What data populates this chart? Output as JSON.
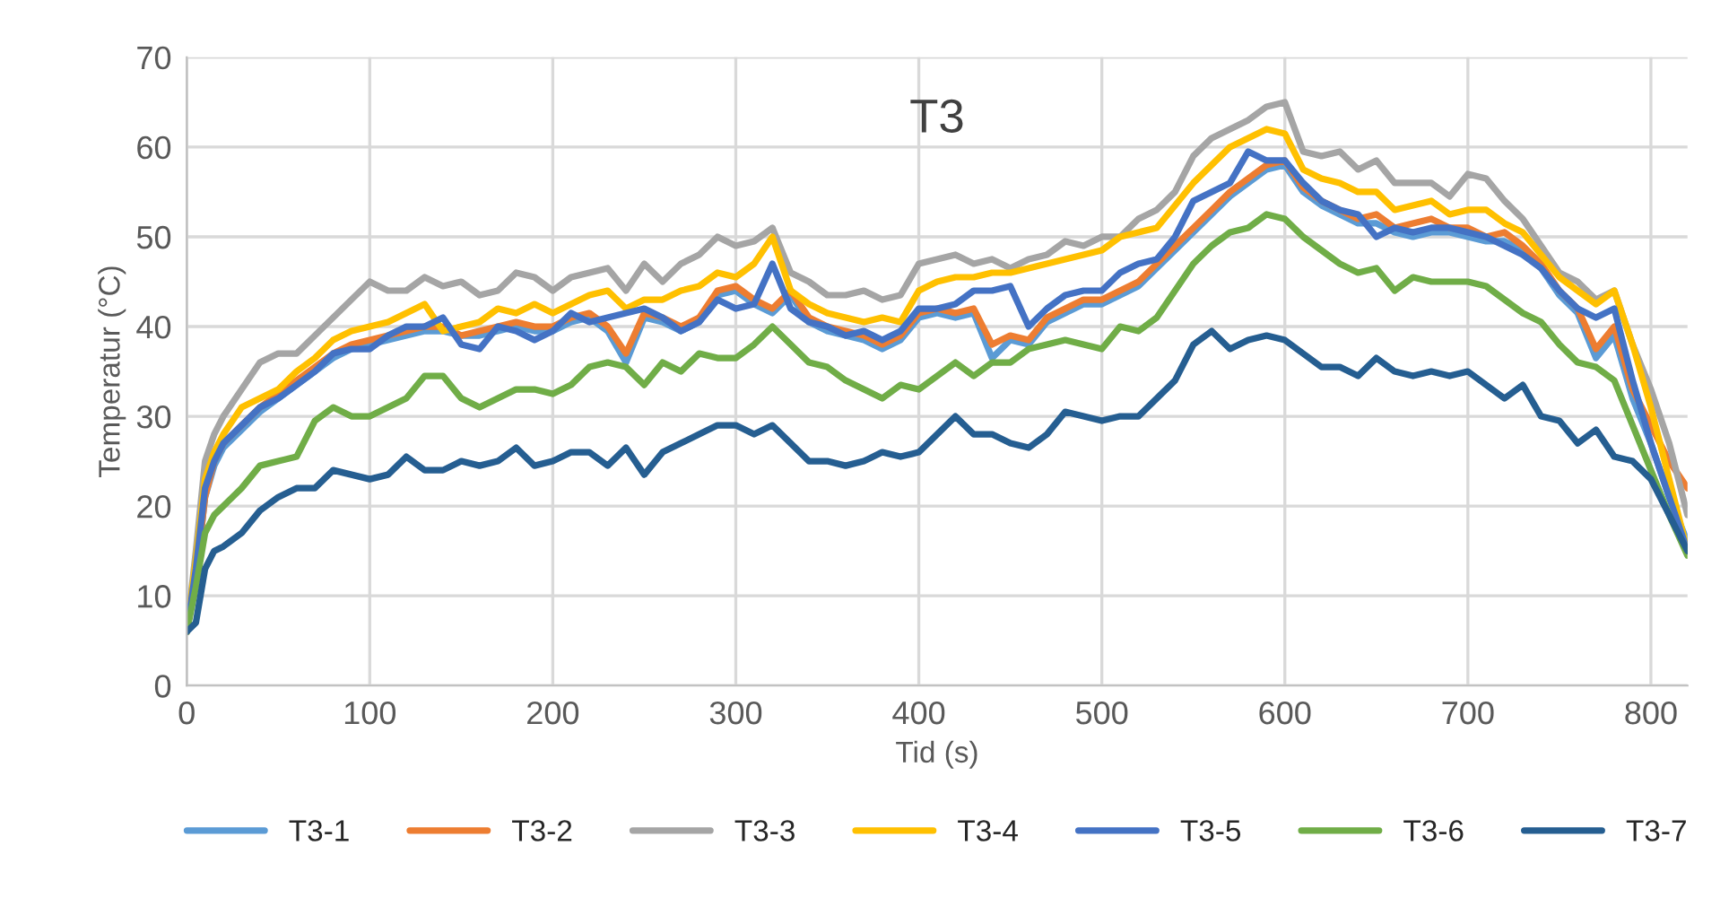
{
  "chart_data": {
    "type": "line",
    "title": "T3",
    "xlabel": "Tid (s)",
    "ylabel": "Temperatur (°C)",
    "xlim": [
      0,
      820
    ],
    "xticks": [
      0,
      100,
      200,
      300,
      400,
      500,
      600,
      700,
      800
    ],
    "ylim": [
      0,
      70
    ],
    "yticks": [
      0,
      10,
      20,
      30,
      40,
      50,
      60,
      70
    ],
    "grid": true,
    "legend": "bottom",
    "marker": "none",
    "line_style": "solid",
    "x": [
      0,
      5,
      10,
      15,
      20,
      30,
      40,
      50,
      60,
      70,
      80,
      90,
      100,
      110,
      120,
      130,
      140,
      150,
      160,
      170,
      180,
      190,
      200,
      210,
      220,
      230,
      240,
      250,
      260,
      270,
      280,
      290,
      300,
      310,
      320,
      330,
      340,
      350,
      360,
      370,
      380,
      390,
      400,
      410,
      420,
      430,
      440,
      450,
      460,
      470,
      480,
      490,
      500,
      510,
      520,
      530,
      540,
      550,
      560,
      570,
      580,
      590,
      600,
      610,
      620,
      630,
      640,
      650,
      660,
      670,
      680,
      690,
      700,
      710,
      720,
      730,
      740,
      750,
      760,
      770,
      780,
      790,
      800,
      810,
      820
    ],
    "series": [
      {
        "name": "T3-1",
        "color": "#5b9bd5",
        "values": [
          6,
          12,
          21,
          24.5,
          26.5,
          28.5,
          30.5,
          32,
          33.5,
          35,
          36.5,
          37.5,
          38,
          38.5,
          39,
          39.5,
          39.5,
          39,
          39,
          39.5,
          40,
          39.5,
          39.5,
          40.5,
          41,
          39.5,
          36,
          41,
          40.5,
          39.5,
          40.5,
          43.5,
          44,
          42.5,
          41.5,
          43.5,
          40.5,
          39.5,
          39,
          38.5,
          37.5,
          38.5,
          41,
          41.5,
          41,
          41.5,
          36.5,
          38.5,
          38,
          40.5,
          41.5,
          42.5,
          42.5,
          43.5,
          44.5,
          46.5,
          48.5,
          50.5,
          52.5,
          54.5,
          56,
          57.5,
          58,
          55,
          53.5,
          52.5,
          51.5,
          51.5,
          50.5,
          50,
          50.5,
          50.5,
          50,
          49.5,
          49.5,
          48.5,
          46.5,
          43.5,
          41.5,
          36.5,
          39,
          32,
          27,
          21,
          16
        ]
      },
      {
        "name": "T3-2",
        "color": "#ed7d31",
        "values": [
          6,
          12,
          21,
          25,
          27,
          29,
          31,
          32.5,
          34,
          35.5,
          37,
          38,
          38.5,
          39,
          39.5,
          40,
          40,
          39,
          39.5,
          40,
          40.5,
          40,
          40,
          41,
          41.5,
          40,
          37,
          41.5,
          41,
          40,
          41,
          44,
          44.5,
          43,
          42,
          44,
          41,
          40,
          39.5,
          39,
          38,
          39,
          41.5,
          42,
          41.5,
          42,
          38,
          39,
          38.5,
          41,
          42,
          43,
          43,
          44,
          45,
          47,
          49,
          51,
          53,
          55,
          56.5,
          58,
          58.5,
          55.5,
          54,
          53,
          52,
          52.5,
          51,
          51.5,
          52,
          51,
          51,
          50,
          50.5,
          49,
          47,
          44,
          42,
          37.5,
          40,
          33,
          29,
          25,
          22
        ]
      },
      {
        "name": "T3-3",
        "color": "#a5a5a5",
        "values": [
          6,
          15,
          25,
          28,
          30,
          33,
          36,
          37,
          37,
          39,
          41,
          43,
          45,
          44,
          44,
          45.5,
          44.5,
          45,
          43.5,
          44,
          46,
          45.5,
          44,
          45.5,
          46,
          46.5,
          44,
          47,
          45,
          47,
          48,
          50,
          49,
          49.5,
          51,
          46,
          45,
          43.5,
          43.5,
          44,
          43,
          43.5,
          47,
          47.5,
          48,
          47,
          47.5,
          46.5,
          47.5,
          48,
          49.5,
          49,
          50,
          50,
          52,
          53,
          55,
          59,
          61,
          62,
          63,
          64.5,
          65,
          59.5,
          59,
          59.5,
          57.5,
          58.5,
          56,
          56,
          56,
          54.5,
          57,
          56.5,
          54,
          52,
          49,
          46,
          45,
          43,
          44,
          38,
          33,
          27,
          19
        ]
      },
      {
        "name": "T3-4",
        "color": "#ffc000",
        "values": [
          6,
          14,
          23,
          26,
          28,
          31,
          32,
          33,
          35,
          36.5,
          38.5,
          39.5,
          40,
          40.5,
          41.5,
          42.5,
          39.5,
          40,
          40.5,
          42,
          41.5,
          42.5,
          41.5,
          42.5,
          43.5,
          44,
          42,
          43,
          43,
          44,
          44.5,
          46,
          45.5,
          47,
          50,
          44,
          42.5,
          41.5,
          41,
          40.5,
          41,
          40.5,
          44,
          45,
          45.5,
          45.5,
          46,
          46,
          46.5,
          47,
          47.5,
          48,
          48.5,
          50,
          50.5,
          51,
          53.5,
          56,
          58,
          60,
          61,
          62,
          61.5,
          57.5,
          56.5,
          56,
          55,
          55,
          53,
          53.5,
          54,
          52.5,
          53,
          53,
          51.5,
          50.5,
          48,
          45.5,
          44,
          42.5,
          44,
          38,
          31,
          23,
          15
        ]
      },
      {
        "name": "T3-5",
        "color": "#4472c4",
        "values": [
          6,
          13,
          22,
          25,
          27,
          29,
          31,
          32,
          33.5,
          35,
          37,
          37.5,
          37.5,
          39,
          40,
          40,
          41,
          38,
          37.5,
          40,
          39.5,
          38.5,
          39.5,
          41.5,
          40.5,
          41,
          41.5,
          42,
          41,
          39.5,
          40.5,
          43,
          42,
          42.5,
          47,
          42,
          40.5,
          40,
          39,
          39.5,
          38.5,
          39.5,
          42,
          42,
          42.5,
          44,
          44,
          44.5,
          40,
          42,
          43.5,
          44,
          44,
          46,
          47,
          47.5,
          50,
          54,
          55,
          56,
          59.5,
          58.5,
          58.5,
          56,
          54,
          53,
          52.5,
          50,
          51,
          50.5,
          51,
          51,
          50.5,
          50,
          49,
          48,
          46.5,
          44,
          42,
          41,
          42,
          34,
          27,
          21,
          15
        ]
      },
      {
        "name": "T3-6",
        "color": "#70ad47",
        "values": [
          6,
          11,
          17,
          19,
          20,
          22,
          24.5,
          25,
          25.5,
          29.5,
          31,
          30,
          30,
          31,
          32,
          34.5,
          34.5,
          32,
          31,
          32,
          33,
          33,
          32.5,
          33.5,
          35.5,
          36,
          35.5,
          33.5,
          36,
          35,
          37,
          36.5,
          36.5,
          38,
          40,
          38,
          36,
          35.5,
          34,
          33,
          32,
          33.5,
          33,
          34.5,
          36,
          34.5,
          36,
          36,
          37.5,
          38,
          38.5,
          38,
          37.5,
          40,
          39.5,
          41,
          44,
          47,
          49,
          50.5,
          51,
          52.5,
          52,
          50,
          48.5,
          47,
          46,
          46.5,
          44,
          45.5,
          45,
          45,
          45,
          44.5,
          43,
          41.5,
          40.5,
          38,
          36,
          35.5,
          34,
          29,
          24,
          19,
          14.5
        ]
      },
      {
        "name": "T3-7",
        "color": "#255e91",
        "values": [
          6,
          7,
          13,
          15,
          15.5,
          17,
          19.5,
          21,
          22,
          22,
          24,
          23.5,
          23,
          23.5,
          25.5,
          24,
          24,
          25,
          24.5,
          25,
          26.5,
          24.5,
          25,
          26,
          26,
          24.5,
          26.5,
          23.5,
          26,
          27,
          28,
          29,
          29,
          28,
          29,
          27,
          25,
          25,
          24.5,
          25,
          26,
          25.5,
          26,
          28,
          30,
          28,
          28,
          27,
          26.5,
          28,
          30.5,
          30,
          29.5,
          30,
          30,
          32,
          34,
          38,
          39.5,
          37.5,
          38.5,
          39,
          38.5,
          37,
          35.5,
          35.5,
          34.5,
          36.5,
          35,
          34.5,
          35,
          34.5,
          35,
          33.5,
          32,
          33.5,
          30,
          29.5,
          27,
          28.5,
          25.5,
          25,
          23,
          19,
          15
        ]
      }
    ]
  }
}
